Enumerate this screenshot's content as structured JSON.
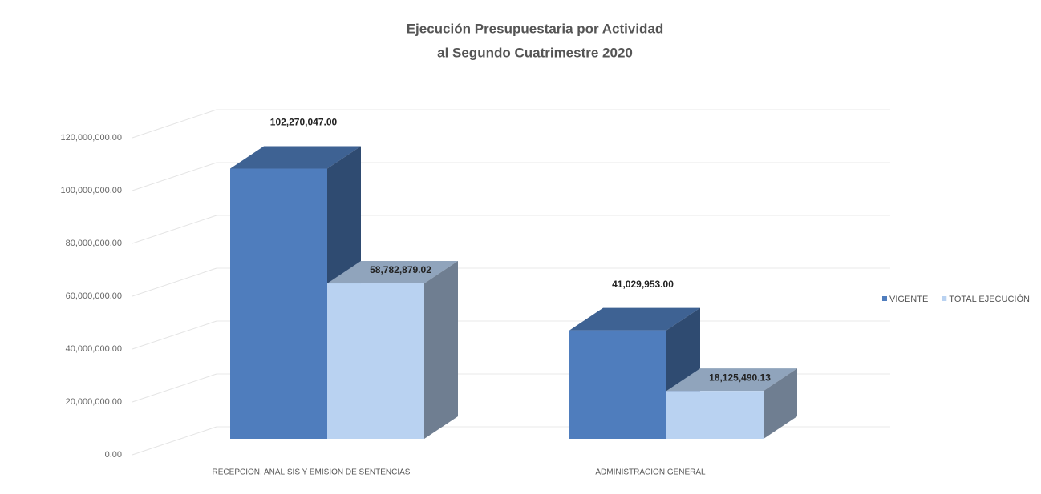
{
  "chart_data": {
    "type": "bar3d",
    "title": "Ejecución Presupuestaria por Actividad",
    "subtitle": "al Segundo Cuatrimestre 2020",
    "categories": [
      "RECEPCION, ANALISIS Y EMISION DE SENTENCIAS",
      "ADMINISTRACION GENERAL"
    ],
    "series": [
      {
        "name": "VIGENTE",
        "color": "#4f7dbd",
        "values": [
          102270047.0,
          41029953.0
        ],
        "value_labels": [
          "102,270,047.00",
          "41,029,953.00"
        ]
      },
      {
        "name": "TOTAL EJECUCIÓN",
        "color": "#b9d2f1",
        "values": [
          58782879.02,
          18125490.13
        ],
        "value_labels": [
          "58,782,879.02",
          "18,125,490.13"
        ]
      }
    ],
    "ylim": [
      0,
      120000000
    ],
    "yticks": [
      {
        "value": 0,
        "label": "0.00"
      },
      {
        "value": 20000000,
        "label": "20,000,000.00"
      },
      {
        "value": 40000000,
        "label": "40,000,000.00"
      },
      {
        "value": 60000000,
        "label": "60,000,000.00"
      },
      {
        "value": 80000000,
        "label": "80,000,000.00"
      },
      {
        "value": 100000000,
        "label": "100,000,000.00"
      },
      {
        "value": 120000000,
        "label": "120,000,000.00"
      }
    ],
    "grid": true,
    "legend": "right"
  }
}
